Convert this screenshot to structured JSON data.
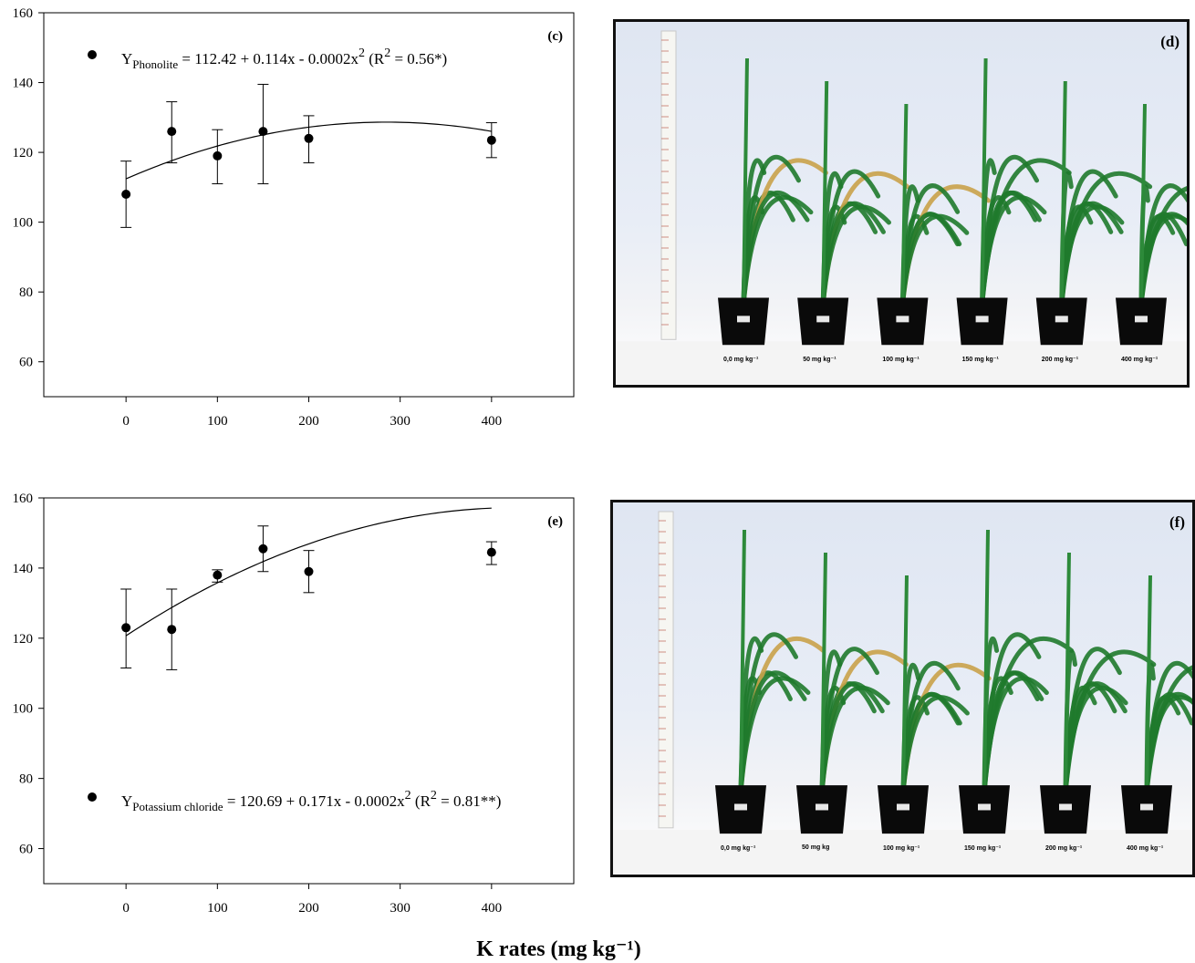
{
  "chart_data": [
    {
      "type": "scatter",
      "panel_label": "(c)",
      "x": [
        0,
        50,
        100,
        150,
        200,
        400
      ],
      "y": [
        108,
        126,
        119,
        126,
        124,
        123.5
      ],
      "error_low": [
        98.5,
        117,
        111,
        111,
        117,
        118.5
      ],
      "error_high": [
        117.5,
        134.5,
        126.5,
        139.5,
        130.5,
        128.5
      ],
      "fit": {
        "a": 112.42,
        "b": 0.114,
        "c": -0.0002
      },
      "legend": {
        "prefix": "Y",
        "subscript": "Phonolite",
        "equation": " = 112.42 + 0.114x - 0.0002x",
        "sup": "2",
        "r2_open": " (R",
        "r2_close": " = 0.56*)",
        "placement": "top-left"
      },
      "xticks": [
        "0",
        "100",
        "200",
        "300",
        "400"
      ],
      "yticks": [
        "60",
        "80",
        "100",
        "120",
        "140",
        "160"
      ],
      "xlim": [
        -90,
        490
      ],
      "ylim": [
        50,
        160
      ]
    },
    {
      "type": "scatter",
      "panel_label": "(e)",
      "x": [
        0,
        50,
        100,
        150,
        200,
        400
      ],
      "y": [
        123,
        122.5,
        138,
        145.5,
        139,
        144.5
      ],
      "error_low": [
        111.5,
        111,
        136,
        139,
        133,
        141
      ],
      "error_high": [
        134,
        134,
        139.5,
        152,
        145,
        147.5
      ],
      "fit": {
        "a": 120.69,
        "b": 0.171,
        "c": -0.0002
      },
      "legend": {
        "prefix": "Y",
        "subscript": "Potassium chloride",
        "equation": " = 120.69 + 0.171x - 0.0002x",
        "sup": "2",
        "r2_open": " (R",
        "r2_close": " = 0.81**)",
        "placement": "bottom-left"
      },
      "xticks": [
        "0",
        "100",
        "200",
        "300",
        "400"
      ],
      "yticks": [
        "60",
        "80",
        "100",
        "120",
        "140",
        "160"
      ],
      "xlim": [
        -90,
        490
      ],
      "ylim": [
        50,
        160
      ]
    }
  ],
  "x_axis_label": "K rates (mg kg⁻¹)",
  "photos": [
    {
      "label": "(d)",
      "pots": [
        "0,0 mg kg⁻¹",
        "50 mg kg⁻¹",
        "100 mg kg⁻¹",
        "150 mg kg⁻¹",
        "200 mg kg⁻¹",
        "400 mg kg⁻¹"
      ]
    },
    {
      "label": "(f)",
      "pots": [
        "0,0 mg kg⁻¹",
        "50 mg kg",
        "100 mg kg⁻¹",
        "150 mg kg⁻¹",
        "200 mg kg⁻¹",
        "400 mg kg⁻¹"
      ]
    }
  ],
  "colors": {
    "marker": "#000000",
    "plant_green": "#1f7a2c",
    "pot": "#0a0a0a",
    "dry_leaf": "#c9a24a"
  }
}
